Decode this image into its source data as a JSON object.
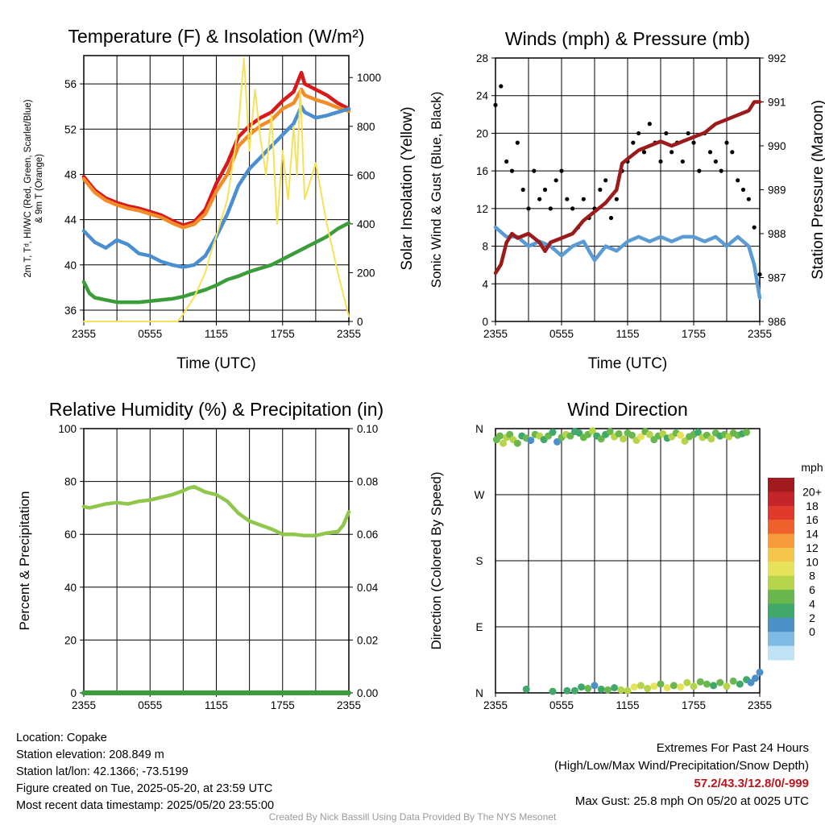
{
  "colors": {
    "temp": "#d7191c",
    "dewpoint": "#3a9d3a",
    "heat_index": "#4a8fd0",
    "temp_9m": "#f28c28",
    "solar": "#f5e15a",
    "wind": "#5b9bd5",
    "gust": "#000000",
    "pressure": "#9b1b1b",
    "rh": "#8fc74a",
    "precip": "#3a9d3a"
  },
  "chart_data": [
    {
      "type": "line",
      "id": "temperature",
      "title": "Temperature (F) & Insolation (W/m²)",
      "xlabel": "Time (UTC)",
      "ylabel_left_lines": [
        "2m T, Tᵈ, HI/WC (Red, Green, Scarlet/Blue)",
        "& 9m T (Orange)"
      ],
      "ylabel_right": "Solar Insolation (Yellow)",
      "x_ticks": [
        "2355",
        "0555",
        "1155",
        "1755",
        "2355"
      ],
      "x_range": [
        0,
        24
      ],
      "ylim_left": [
        35,
        58.5
      ],
      "y_ticks_left": [
        36,
        40,
        44,
        48,
        52,
        56
      ],
      "ylim_right": [
        0,
        1090
      ],
      "y_ticks_right": [
        0,
        200,
        400,
        600,
        800,
        1000
      ],
      "series": [
        {
          "name": "2m T",
          "color_key": "temp",
          "x": [
            0,
            1,
            2,
            3,
            4,
            5,
            6,
            7,
            8,
            9,
            10,
            11,
            12,
            13,
            14,
            15,
            16,
            17,
            18,
            19,
            19.7,
            20,
            21,
            22,
            23,
            24
          ],
          "y": [
            47.8,
            46.6,
            45.9,
            45.5,
            45.2,
            45.0,
            44.7,
            44.4,
            43.9,
            43.5,
            43.8,
            44.9,
            47.2,
            49.0,
            51.3,
            52.3,
            53.0,
            53.5,
            54.5,
            55.3,
            57.0,
            56.0,
            55.5,
            55.0,
            54.3,
            53.8
          ]
        },
        {
          "name": "9m T",
          "color_key": "temp_9m",
          "x": [
            0,
            1,
            2,
            3,
            4,
            5,
            6,
            7,
            8,
            9,
            10,
            11,
            12,
            13,
            14,
            15,
            16,
            17,
            18,
            19,
            19.7,
            20,
            21,
            22,
            23,
            24
          ],
          "y": [
            47.6,
            46.4,
            45.7,
            45.3,
            45.0,
            44.8,
            44.5,
            44.2,
            43.7,
            43.3,
            43.6,
            44.5,
            46.5,
            48.0,
            50.5,
            51.5,
            52.3,
            52.8,
            53.8,
            54.3,
            55.5,
            55.0,
            54.6,
            54.3,
            53.9,
            53.6
          ]
        },
        {
          "name": "HI/WC",
          "color_key": "heat_index",
          "x": [
            0,
            1,
            2,
            3,
            4,
            5,
            6,
            7,
            8,
            9,
            10,
            11,
            12,
            13,
            14,
            15,
            16,
            17,
            18,
            19,
            19.7,
            20,
            21,
            22,
            23,
            24
          ],
          "y": [
            43.0,
            42.0,
            41.5,
            42.2,
            41.8,
            41.0,
            40.8,
            40.3,
            40.0,
            39.8,
            40.0,
            40.8,
            42.5,
            44.5,
            47.0,
            48.5,
            49.5,
            50.5,
            51.5,
            52.5,
            54.0,
            53.5,
            53.0,
            53.2,
            53.5,
            53.8
          ]
        },
        {
          "name": "Td",
          "color_key": "dewpoint",
          "x": [
            0,
            0.5,
            1,
            2,
            3,
            4,
            5,
            6,
            7,
            8,
            9,
            10,
            11,
            12,
            13,
            14,
            15,
            16,
            17,
            18,
            19,
            20,
            21,
            22,
            23,
            24
          ],
          "y": [
            38.5,
            37.5,
            37.1,
            36.9,
            36.7,
            36.7,
            36.7,
            36.8,
            36.9,
            37.0,
            37.2,
            37.5,
            37.8,
            38.2,
            38.7,
            39.0,
            39.4,
            39.7,
            40.0,
            40.5,
            41.0,
            41.5,
            42.0,
            42.5,
            43.2,
            43.7
          ]
        },
        {
          "name": "Solar",
          "color_key": "solar",
          "axis": "right",
          "x": [
            0,
            8.5,
            9,
            10,
            11,
            11.5,
            12,
            13,
            13.5,
            14,
            14.5,
            15,
            15.5,
            16,
            16.5,
            17,
            17.5,
            18,
            18.5,
            19,
            19.3,
            19.6,
            20,
            21,
            22,
            23,
            24
          ],
          "y": [
            0,
            0,
            30,
            100,
            200,
            280,
            350,
            500,
            650,
            800,
            1080,
            700,
            950,
            750,
            600,
            850,
            400,
            700,
            500,
            800,
            600,
            950,
            500,
            650,
            400,
            200,
            20
          ]
        }
      ]
    },
    {
      "type": "line",
      "id": "winds",
      "title": "Winds (mph) & Pressure (mb)",
      "xlabel": "Time (UTC)",
      "ylabel_left": "Sonic Wind & Gust (Blue, Black)",
      "ylabel_right": "Station Pressure (Maroon)",
      "x_ticks": [
        "2355",
        "0555",
        "1155",
        "1755",
        "2355"
      ],
      "x_range": [
        0,
        24
      ],
      "ylim_left": [
        0,
        28
      ],
      "y_ticks_left": [
        0,
        4,
        8,
        12,
        16,
        20,
        24,
        28
      ],
      "ylim_right": [
        986,
        992
      ],
      "y_ticks_right": [
        986,
        987,
        988,
        989,
        990,
        991,
        992
      ],
      "series": [
        {
          "name": "Wind",
          "color_key": "wind",
          "x": [
            0,
            1,
            2,
            3,
            4,
            5,
            6,
            7,
            8,
            9,
            10,
            11,
            12,
            13,
            14,
            15,
            16,
            17,
            18,
            19,
            20,
            21,
            22,
            23,
            23.5,
            24
          ],
          "y": [
            10.0,
            9.0,
            9.0,
            8.0,
            8.5,
            8.0,
            7.0,
            8.0,
            8.5,
            6.5,
            8.0,
            7.5,
            8.5,
            9.0,
            8.5,
            9.0,
            8.5,
            9.0,
            9.0,
            8.5,
            9.0,
            8.0,
            9.0,
            8.0,
            6.0,
            2.5
          ]
        },
        {
          "name": "Gust",
          "color_key": "gust",
          "mode": "scatter",
          "x": [
            0,
            0.5,
            1,
            1.5,
            2,
            2.5,
            3,
            3.5,
            4,
            4.5,
            5,
            5.5,
            6,
            6.5,
            7,
            7.5,
            8,
            8.5,
            9,
            9.5,
            10,
            10.5,
            11,
            11.5,
            12,
            12.5,
            13,
            13.5,
            14,
            14.5,
            15,
            15.5,
            16,
            16.5,
            17,
            17.5,
            18,
            18.5,
            19,
            19.5,
            20,
            20.5,
            21,
            21.5,
            22,
            22.5,
            23,
            23.5,
            24
          ],
          "y": [
            23.0,
            25.0,
            17.0,
            16.0,
            19.0,
            14.0,
            12.0,
            16.0,
            13.0,
            14.0,
            12.0,
            15.0,
            16.0,
            13.0,
            12.0,
            10.0,
            13.0,
            11.0,
            12.0,
            14.0,
            15.0,
            11.0,
            13.0,
            16.0,
            17.0,
            19.0,
            20.0,
            18.0,
            21.0,
            19.0,
            17.0,
            20.0,
            18.0,
            19.0,
            17.0,
            20.0,
            19.0,
            16.0,
            20.0,
            18.0,
            17.0,
            16.0,
            19.0,
            18.0,
            15.0,
            14.0,
            13.0,
            10.0,
            5.0
          ]
        },
        {
          "name": "Pressure",
          "color_key": "pressure",
          "axis": "right",
          "x": [
            0,
            0.5,
            1,
            1.5,
            2,
            3,
            4,
            4.5,
            5,
            6,
            7,
            8,
            9,
            10,
            11,
            11.5,
            12,
            13,
            14,
            15,
            16,
            17,
            18,
            19,
            20,
            21,
            22,
            23,
            23.5,
            24
          ],
          "y": [
            987.1,
            987.3,
            987.8,
            988.0,
            987.9,
            988.0,
            987.8,
            987.6,
            987.8,
            987.9,
            988.0,
            988.3,
            988.5,
            988.7,
            989.0,
            989.6,
            989.7,
            989.9,
            990.0,
            990.1,
            990.0,
            990.1,
            990.2,
            990.3,
            990.5,
            990.6,
            990.7,
            990.8,
            991.0,
            991.0
          ]
        }
      ]
    },
    {
      "type": "line",
      "id": "humidity",
      "title": "Relative Humidity (%) & Precipitation (in)",
      "ylabel_left": "Percent & Precipitation",
      "x_ticks": [
        "2355",
        "0555",
        "1155",
        "1755",
        "2355"
      ],
      "x_range": [
        0,
        24
      ],
      "ylim_left": [
        0,
        100
      ],
      "y_ticks_left": [
        0,
        20,
        40,
        60,
        80,
        100
      ],
      "ylim_right": [
        0,
        0.1
      ],
      "y_ticks_right": [
        "0.00",
        "0.02",
        "0.04",
        "0.06",
        "0.08",
        "0.10"
      ],
      "series": [
        {
          "name": "RH",
          "color_key": "rh",
          "x": [
            0,
            0.5,
            1,
            2,
            3,
            4,
            5,
            6,
            7,
            8,
            9,
            9.5,
            10,
            11,
            12,
            13,
            14,
            15,
            16,
            17,
            18,
            19,
            20,
            21,
            22,
            23,
            23.5,
            24
          ],
          "y": [
            70.5,
            70.0,
            70.5,
            71.5,
            72.0,
            71.5,
            72.5,
            73.0,
            74.0,
            75.0,
            76.5,
            77.5,
            78.0,
            76.0,
            75.0,
            72.5,
            68.0,
            65.0,
            63.5,
            62.0,
            60.0,
            60.0,
            59.5,
            59.5,
            60.5,
            61.0,
            63.5,
            68.5
          ]
        },
        {
          "name": "Precip",
          "color_key": "precip",
          "axis": "right",
          "x": [
            0,
            24
          ],
          "y": [
            0,
            0
          ]
        }
      ]
    },
    {
      "type": "scatter",
      "id": "direction",
      "title": "Wind Direction",
      "ylabel_left": "Direction (Colored By Speed)",
      "x_ticks": [
        "2355",
        "0555",
        "1155",
        "1755",
        "2355"
      ],
      "x_range": [
        0,
        24
      ],
      "ylim_left": [
        0,
        360
      ],
      "y_ticks_labels": [
        "N",
        "E",
        "S",
        "W",
        "N"
      ],
      "y_ticks_values": [
        0,
        90,
        180,
        270,
        360
      ],
      "colorbar": {
        "unit": "mph",
        "labels": [
          "20+",
          "18",
          "16",
          "14",
          "12",
          "10",
          "8",
          "6",
          "4",
          "2",
          "0"
        ],
        "colors": [
          "#a11a1f",
          "#c4252b",
          "#e03a2c",
          "#f0622d",
          "#f79a3b",
          "#f5c64a",
          "#e6e25a",
          "#b6d44a",
          "#6ab74e",
          "#3fa86a",
          "#4a8fc7",
          "#7dbae4",
          "#bfe3f5"
        ]
      },
      "series": [
        {
          "name": "dir",
          "x": [
            0.1,
            0.4,
            0.7,
            1.0,
            1.3,
            1.6,
            2.0,
            2.4,
            2.8,
            3.2,
            3.6,
            4.0,
            4.4,
            4.8,
            5.2,
            5.6,
            6.0,
            6.4,
            6.8,
            7.2,
            7.6,
            8.0,
            8.4,
            8.8,
            9.2,
            9.6,
            10.0,
            10.4,
            10.8,
            11.2,
            11.6,
            12.0,
            12.4,
            12.8,
            13.2,
            13.6,
            14.0,
            14.4,
            14.8,
            15.2,
            15.6,
            16.0,
            16.4,
            16.8,
            17.2,
            17.6,
            18.0,
            18.4,
            18.8,
            19.2,
            19.6,
            20.0,
            20.4,
            20.8,
            21.2,
            21.6,
            22.0,
            22.4,
            22.8,
            2.8,
            5.2,
            6.5,
            7.2,
            7.8,
            8.4,
            9.0,
            9.6,
            10.2,
            10.8,
            11.4,
            12.0,
            12.6,
            13.2,
            13.8,
            14.4,
            15.0,
            15.6,
            16.2,
            16.8,
            17.4,
            18.0,
            18.6,
            19.2,
            19.8,
            20.4,
            21.0,
            21.6,
            22.2,
            22.8,
            23.2,
            23.6,
            24.0
          ],
          "y": [
            345,
            350,
            340,
            348,
            352,
            345,
            340,
            350,
            347,
            344,
            352,
            350,
            345,
            350,
            355,
            342,
            348,
            352,
            350,
            356,
            354,
            348,
            352,
            357,
            350,
            346,
            352,
            356,
            349,
            353,
            346,
            354,
            351,
            344,
            349,
            356,
            352,
            345,
            350,
            353,
            347,
            349,
            354,
            351,
            343,
            349,
            352,
            355,
            348,
            351,
            346,
            354,
            350,
            352,
            349,
            354,
            351,
            353,
            355,
            5,
            2,
            3,
            3,
            8,
            6,
            10,
            5,
            4,
            7,
            4,
            3,
            8,
            10,
            6,
            9,
            12,
            7,
            10,
            8,
            14,
            9,
            15,
            12,
            10,
            14,
            9,
            16,
            12,
            18,
            14,
            20,
            28
          ],
          "c": [
            8,
            8,
            10,
            9,
            7,
            9,
            8,
            6,
            8,
            4,
            7,
            9,
            5,
            8,
            6,
            4,
            7,
            9,
            8,
            5,
            6,
            7,
            8,
            9,
            6,
            8,
            5,
            7,
            9,
            8,
            10,
            8,
            7,
            9,
            11,
            8,
            10,
            7,
            8,
            9,
            6,
            9,
            8,
            11,
            9,
            7,
            8,
            5,
            10,
            7,
            9,
            8,
            6,
            7,
            9,
            7,
            8,
            6,
            7,
            5,
            5,
            5,
            6,
            5,
            7,
            4,
            5,
            7,
            6,
            10,
            9,
            11,
            10,
            9,
            12,
            8,
            11,
            7,
            12,
            9,
            10,
            8,
            7,
            6,
            8,
            9,
            7,
            5,
            6,
            4,
            3,
            3
          ]
        }
      ]
    }
  ],
  "info": {
    "location": "Location: Copake",
    "elevation": "Station elevation: 208.849 m",
    "latlon": "Station lat/lon: 42.1366; -73.5199",
    "created": "Figure created on Tue, 2025-05-20, at 23:59 UTC",
    "recent": "Most recent data timestamp: 2025/05/20 23:55:00"
  },
  "extremes": {
    "title": "Extremes For Past 24 Hours",
    "subtitle": "(High/Low/Max Wind/Precipitation/Snow Depth)",
    "values": "57.2/43.3/12.8/0/-999",
    "gust": "Max Gust: 25.8 mph On 05/20 at 0025 UTC"
  },
  "credit": "Created By Nick Bassill Using Data Provided By The NYS Mesonet"
}
